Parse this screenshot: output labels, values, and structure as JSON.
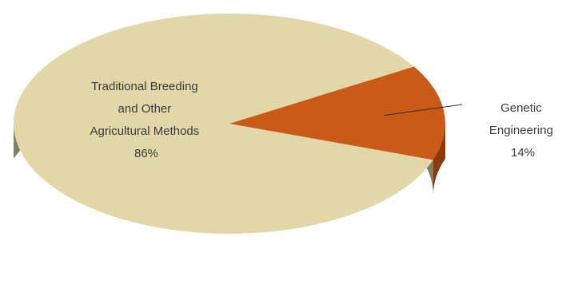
{
  "chart_data": {
    "type": "pie",
    "style": "3d",
    "series": [
      {
        "label_lines": [
          "Traditional Breeding",
          "and Other",
          "Agricultural Methods"
        ],
        "value": 86,
        "value_text": "86%",
        "color": "#e1d7a9",
        "side_color": "#7f7f63"
      },
      {
        "label_lines": [
          "Genetic",
          "Engineering"
        ],
        "value": 14,
        "value_text": "14%",
        "color": "#c95a18",
        "side_color": "#8a3b0c"
      }
    ]
  }
}
